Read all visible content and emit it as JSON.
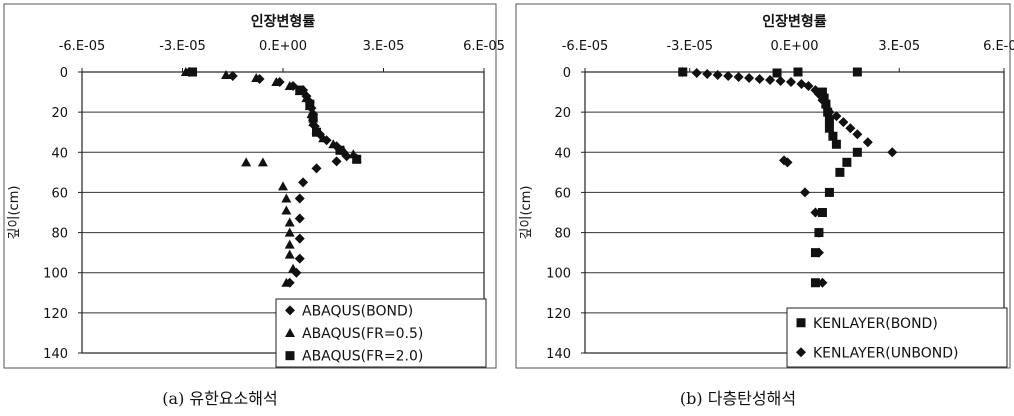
{
  "chart_data": [
    {
      "type": "scatter",
      "caption": "(a) 유한요소해석",
      "xlabel": "인장변형률",
      "ylabel": "깊이(cm)",
      "xlim": [
        -6e-05,
        6e-05
      ],
      "ylim": [
        0,
        140
      ],
      "y_inverted": true,
      "x_axis_position": "top",
      "x_ticks": [
        -6e-05,
        -3e-05,
        0,
        3e-05,
        6e-05
      ],
      "x_tick_labels": [
        "-6.E-05",
        "-3.E-05",
        "0.E+00",
        "3.E-05",
        "6.E-05"
      ],
      "y_ticks": [
        0,
        20,
        40,
        60,
        80,
        100,
        120,
        140
      ],
      "y_tick_labels": [
        "0",
        "20",
        "40",
        "60",
        "80",
        "100",
        "120",
        "140"
      ],
      "grid": "horizontal",
      "legend_position": "bottom-right",
      "series": [
        {
          "name": "ABAQUS(BOND)",
          "marker": "diamond",
          "points": [
            [
              -2.8e-05,
              0
            ],
            [
              -1.5e-05,
              2
            ],
            [
              -7e-06,
              3.5
            ],
            [
              -1e-06,
              5
            ],
            [
              3e-06,
              7
            ],
            [
              6e-06,
              9
            ],
            [
              7e-06,
              12
            ],
            [
              8e-06,
              15
            ],
            [
              8.5e-06,
              18
            ],
            [
              9e-06,
              21
            ],
            [
              9e-06,
              24
            ],
            [
              9.5e-06,
              27
            ],
            [
              1.1e-05,
              31
            ],
            [
              1.3e-05,
              34
            ],
            [
              1.6e-05,
              37
            ],
            [
              1.8e-05,
              40
            ],
            [
              1.9e-05,
              42
            ],
            [
              1.6e-05,
              44.5
            ],
            [
              1e-05,
              48
            ],
            [
              6e-06,
              55
            ],
            [
              5e-06,
              63
            ],
            [
              5e-06,
              73
            ],
            [
              5e-06,
              83
            ],
            [
              5e-06,
              93
            ],
            [
              4e-06,
              100
            ],
            [
              2e-06,
              105
            ]
          ]
        },
        {
          "name": "ABAQUS(FR=0.5)",
          "marker": "triangle",
          "points": [
            [
              -2.9e-05,
              0
            ],
            [
              -1.7e-05,
              1.5
            ],
            [
              -8e-06,
              3
            ],
            [
              -2e-06,
              5
            ],
            [
              2e-06,
              7
            ],
            [
              5e-06,
              9.5
            ],
            [
              7e-06,
              13
            ],
            [
              8e-06,
              17
            ],
            [
              8.5e-06,
              21
            ],
            [
              9e-06,
              25
            ],
            [
              1e-05,
              29
            ],
            [
              1.2e-05,
              33
            ],
            [
              1.5e-05,
              36
            ],
            [
              1.8e-05,
              39
            ],
            [
              2.1e-05,
              41
            ],
            [
              2.2e-05,
              43
            ],
            [
              -1.1e-05,
              45
            ],
            [
              -6e-06,
              45
            ],
            [
              0,
              57
            ],
            [
              1e-06,
              63
            ],
            [
              1e-06,
              69
            ],
            [
              2e-06,
              75
            ],
            [
              2e-06,
              80
            ],
            [
              2e-06,
              86
            ],
            [
              2e-06,
              91
            ],
            [
              3e-06,
              98
            ],
            [
              1e-06,
              105
            ]
          ]
        },
        {
          "name": "ABAQUS(FR=2.0)",
          "marker": "square",
          "points": [
            [
              -2.7e-05,
              0
            ],
            [
              5e-06,
              9
            ],
            [
              8e-06,
              16
            ],
            [
              9e-06,
              23
            ],
            [
              1e-05,
              30
            ],
            [
              1.7e-05,
              39
            ],
            [
              2.2e-05,
              43.5
            ]
          ]
        }
      ]
    },
    {
      "type": "scatter",
      "caption": "(b) 다층탄성해석",
      "xlabel": "인장변형률",
      "ylabel": "깊이(cm)",
      "xlim": [
        -6e-05,
        6e-05
      ],
      "ylim": [
        0,
        140
      ],
      "y_inverted": true,
      "x_axis_position": "top",
      "x_ticks": [
        -6e-05,
        -3e-05,
        0,
        3e-05,
        6e-05
      ],
      "x_tick_labels": [
        "-6.E-05",
        "-3.E-05",
        "0.E+00",
        "3.E-05",
        "6.E-05"
      ],
      "y_ticks": [
        0,
        20,
        40,
        60,
        80,
        100,
        120,
        140
      ],
      "y_tick_labels": [
        "0",
        "20",
        "40",
        "60",
        "80",
        "100",
        "120",
        "140"
      ],
      "grid": "horizontal",
      "legend_position": "bottom-right",
      "series": [
        {
          "name": "KENLAYER(BOND)",
          "marker": "square",
          "points": [
            [
              -3.2e-05,
              0
            ],
            [
              -5e-06,
              0.5
            ],
            [
              1e-06,
              0
            ],
            [
              1.8e-05,
              0
            ],
            [
              8e-06,
              10
            ],
            [
              8.5e-06,
              13
            ],
            [
              9e-06,
              16
            ],
            [
              9.5e-06,
              20
            ],
            [
              1e-05,
              24
            ],
            [
              1e-05,
              28
            ],
            [
              1.1e-05,
              32
            ],
            [
              1.2e-05,
              36
            ],
            [
              1.8e-05,
              40
            ],
            [
              1.5e-05,
              45
            ],
            [
              1.3e-05,
              50
            ],
            [
              1e-05,
              60
            ],
            [
              8e-06,
              70
            ],
            [
              7e-06,
              80
            ],
            [
              6e-06,
              90
            ],
            [
              6e-06,
              105
            ]
          ]
        },
        {
          "name": "KENLAYER(UNBOND)",
          "marker": "diamond",
          "points": [
            [
              -3.2e-05,
              0
            ],
            [
              -2.8e-05,
              0.5
            ],
            [
              -2.5e-05,
              1
            ],
            [
              -2.2e-05,
              1.5
            ],
            [
              -1.9e-05,
              2
            ],
            [
              -1.6e-05,
              2.5
            ],
            [
              -1.3e-05,
              3
            ],
            [
              -1e-05,
              3.5
            ],
            [
              -7e-06,
              4
            ],
            [
              -4e-06,
              4.5
            ],
            [
              -1e-06,
              5
            ],
            [
              2e-06,
              6
            ],
            [
              4e-06,
              7
            ],
            [
              6e-06,
              9
            ],
            [
              7e-06,
              11
            ],
            [
              8e-06,
              14
            ],
            [
              9e-06,
              17
            ],
            [
              1e-05,
              20
            ],
            [
              1.2e-05,
              22
            ],
            [
              1.4e-05,
              25
            ],
            [
              1.6e-05,
              28
            ],
            [
              1.8e-05,
              31
            ],
            [
              2.1e-05,
              35
            ],
            [
              2.8e-05,
              40
            ],
            [
              -3e-06,
              44
            ],
            [
              -2e-06,
              45
            ],
            [
              3e-06,
              60
            ],
            [
              6e-06,
              70
            ],
            [
              7e-06,
              80
            ],
            [
              7e-06,
              90
            ],
            [
              8e-06,
              105
            ]
          ]
        }
      ]
    }
  ]
}
